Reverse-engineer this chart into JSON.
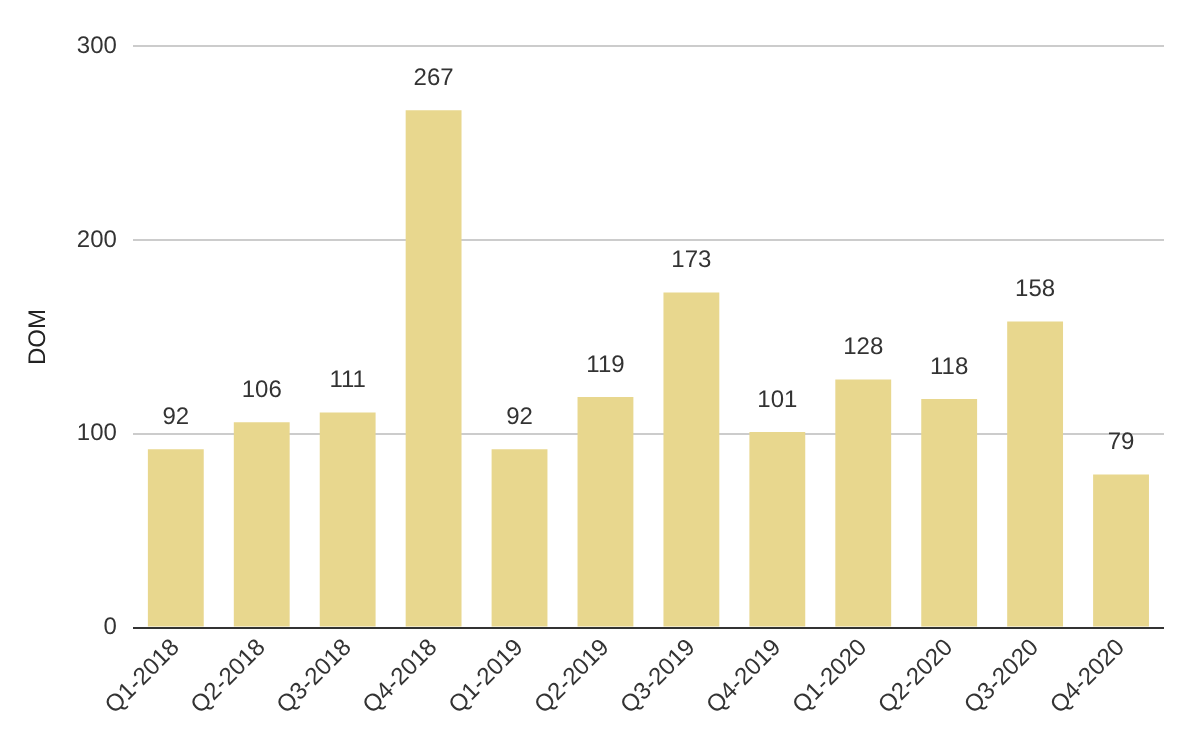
{
  "chart_data": {
    "type": "bar",
    "ylabel": "DOM",
    "categories": [
      "Q1-2018",
      "Q2-2018",
      "Q3-2018",
      "Q4-2018",
      "Q1-2019",
      "Q2-2019",
      "Q3-2019",
      "Q4-2019",
      "Q1-2020",
      "Q2-2020",
      "Q3-2020",
      "Q4-2020"
    ],
    "values": [
      92,
      106,
      111,
      267,
      92,
      119,
      173,
      101,
      128,
      118,
      158,
      79
    ],
    "color": "#e8d78e",
    "ylim": [
      0,
      300
    ],
    "yticks": [
      0,
      100,
      200,
      300
    ],
    "grid": "y",
    "data_labels": true
  }
}
